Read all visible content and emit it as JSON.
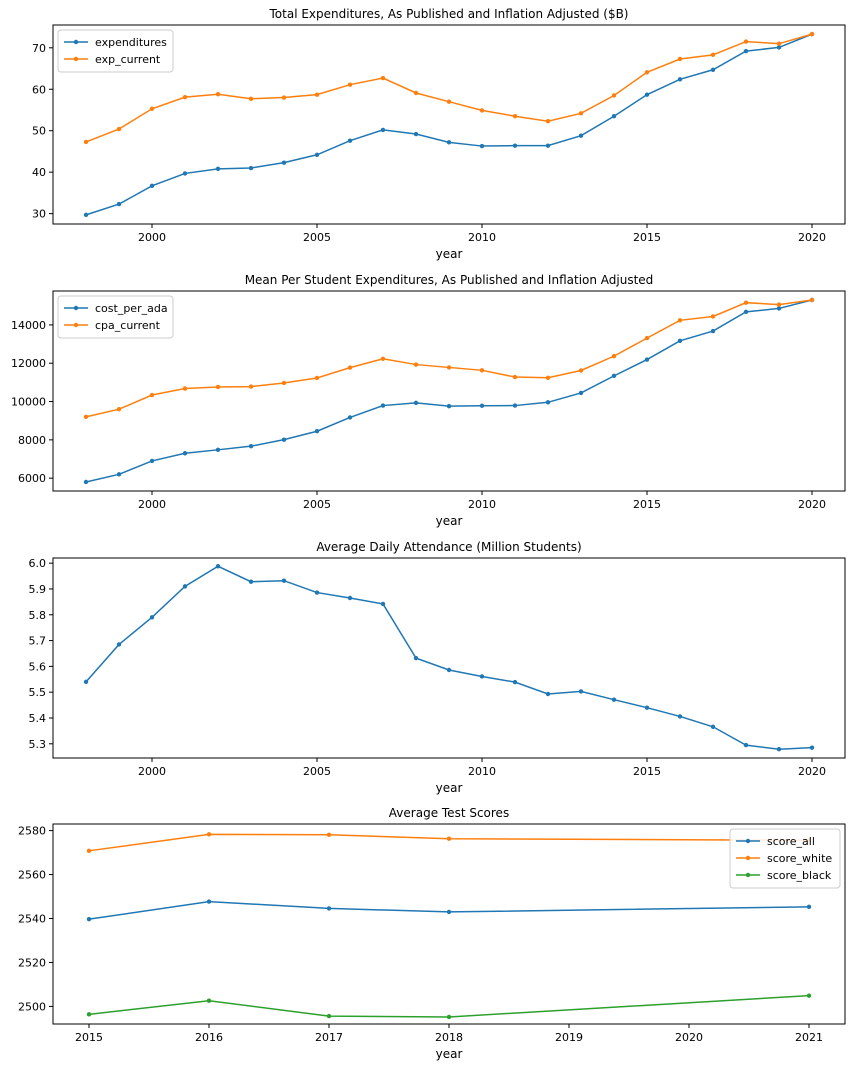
{
  "chart_data": [
    {
      "type": "line",
      "title": "Total Expenditures, As Published and Inflation Adjusted ($B)",
      "xlabel": "year",
      "ylabel": "",
      "x": [
        1998,
        1999,
        2000,
        2001,
        2002,
        2003,
        2004,
        2005,
        2006,
        2007,
        2008,
        2009,
        2010,
        2011,
        2012,
        2013,
        2014,
        2015,
        2016,
        2017,
        2018,
        2019,
        2020
      ],
      "xlim": [
        1997,
        2021
      ],
      "ylim": [
        27.5,
        75.5
      ],
      "xticks": [
        2000,
        2005,
        2010,
        2015,
        2020
      ],
      "yticks": [
        30,
        40,
        50,
        60,
        70
      ],
      "legend": "upper-left",
      "series": [
        {
          "name": "expenditures",
          "color": "#1f77b4",
          "values": [
            29.7,
            32.3,
            36.7,
            39.7,
            40.8,
            41.0,
            42.3,
            44.2,
            47.6,
            50.2,
            49.2,
            47.2,
            46.3,
            46.4,
            46.4,
            48.8,
            53.5,
            58.7,
            62.4,
            64.7,
            69.2,
            70.1,
            73.3
          ]
        },
        {
          "name": "exp_current",
          "color": "#ff7f0e",
          "values": [
            47.3,
            50.4,
            55.3,
            58.1,
            58.8,
            57.7,
            58.0,
            58.7,
            61.1,
            62.7,
            59.1,
            57.0,
            54.9,
            53.5,
            52.3,
            54.2,
            58.5,
            64.1,
            67.3,
            68.3,
            71.5,
            71.0,
            73.3
          ]
        }
      ]
    },
    {
      "type": "line",
      "title": "Mean Per Student Expenditures, As Published and Inflation Adjusted",
      "xlabel": "year",
      "ylabel": "",
      "x": [
        1998,
        1999,
        2000,
        2001,
        2002,
        2003,
        2004,
        2005,
        2006,
        2007,
        2008,
        2009,
        2010,
        2011,
        2012,
        2013,
        2014,
        2015,
        2016,
        2017,
        2018,
        2019,
        2020
      ],
      "xlim": [
        1997,
        2021
      ],
      "ylim": [
        5330,
        15770
      ],
      "xticks": [
        2000,
        2005,
        2010,
        2015,
        2020
      ],
      "yticks": [
        6000,
        8000,
        10000,
        12000,
        14000
      ],
      "legend": "upper-left",
      "series": [
        {
          "name": "cost_per_ada",
          "color": "#1f77b4",
          "values": [
            5800,
            6200,
            6900,
            7300,
            7480,
            7670,
            8010,
            8450,
            9170,
            9790,
            9930,
            9760,
            9780,
            9790,
            9960,
            10450,
            11340,
            12190,
            13170,
            13680,
            14680,
            14860,
            15300
          ]
        },
        {
          "name": "cpa_current",
          "color": "#ff7f0e",
          "values": [
            9200,
            9600,
            10340,
            10680,
            10760,
            10780,
            10970,
            11230,
            11770,
            12230,
            11930,
            11780,
            11630,
            11280,
            11240,
            11620,
            12370,
            13310,
            14240,
            14440,
            15160,
            15060,
            15300
          ]
        }
      ]
    },
    {
      "type": "line",
      "title": "Average Daily Attendance (Million Students)",
      "xlabel": "year",
      "ylabel": "",
      "x": [
        1998,
        1999,
        2000,
        2001,
        2002,
        2003,
        2004,
        2005,
        2006,
        2007,
        2008,
        2009,
        2010,
        2011,
        2012,
        2013,
        2014,
        2015,
        2016,
        2017,
        2018,
        2019,
        2020
      ],
      "xlim": [
        1997,
        2021
      ],
      "ylim": [
        5.245,
        6.02
      ],
      "xticks": [
        2000,
        2005,
        2010,
        2015,
        2020
      ],
      "yticks": [
        5.3,
        5.4,
        5.5,
        5.6,
        5.7,
        5.8,
        5.9,
        6.0
      ],
      "legend": "none",
      "series": [
        {
          "color": "#1f77b4",
          "values": [
            5.54,
            5.685,
            5.79,
            5.91,
            5.988,
            5.928,
            5.932,
            5.886,
            5.865,
            5.842,
            5.632,
            5.586,
            5.561,
            5.539,
            5.493,
            5.503,
            5.471,
            5.44,
            5.406,
            5.366,
            5.295,
            5.279,
            5.285
          ]
        }
      ]
    },
    {
      "type": "line",
      "title": "Average Test Scores",
      "xlabel": "year",
      "ylabel": "",
      "x": [
        2015,
        2016,
        2017,
        2018,
        2021
      ],
      "xlim": [
        2014.7,
        2021.3
      ],
      "ylim": [
        2492,
        2583
      ],
      "xticks": [
        2015,
        2016,
        2017,
        2018,
        2019,
        2020,
        2021
      ],
      "yticks": [
        2500,
        2520,
        2540,
        2560,
        2580
      ],
      "legend": "upper-right",
      "series": [
        {
          "name": "score_all",
          "color": "#1f77b4",
          "values": [
            2539.7,
            2547.7,
            2544.6,
            2543.0,
            2545.3
          ]
        },
        {
          "name": "score_white",
          "color": "#ff7f0e",
          "values": [
            2570.8,
            2578.3,
            2578.1,
            2576.3,
            2575.6
          ]
        },
        {
          "name": "score_black",
          "color": "#2ca02c",
          "values": [
            2496.4,
            2502.6,
            2495.6,
            2495.2,
            2504.9
          ]
        }
      ]
    }
  ]
}
